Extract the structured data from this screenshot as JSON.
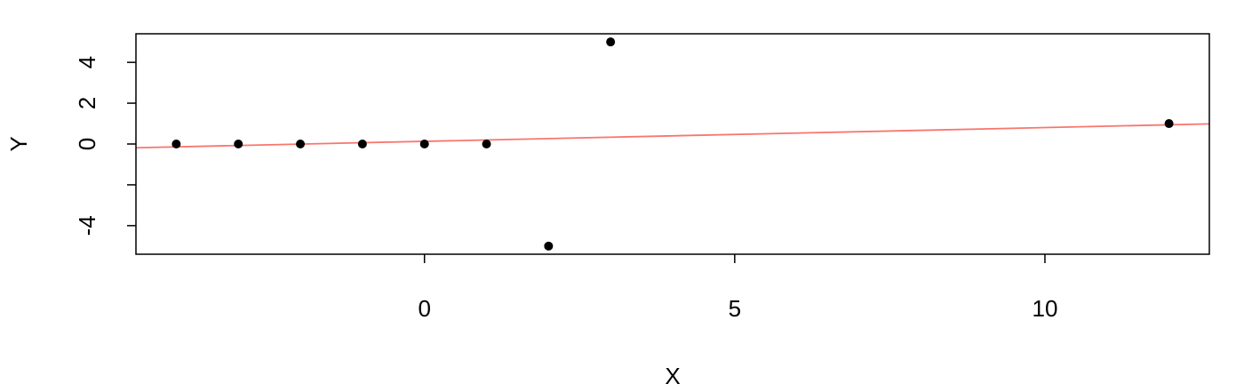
{
  "chart_data": {
    "type": "scatter",
    "title": "",
    "xlabel": "X",
    "ylabel": "Y",
    "xlim": [
      -4.65,
      12.65
    ],
    "ylim": [
      -5.4,
      5.4
    ],
    "x_ticks": [
      0,
      5,
      10
    ],
    "x_tick_labels": [
      "0",
      "5",
      "10"
    ],
    "y_ticks": [
      -4,
      -2,
      0,
      2,
      4
    ],
    "y_tick_labels": [
      "-4",
      "",
      "0",
      "2",
      "4"
    ],
    "grid": false,
    "legend": "none",
    "points": {
      "x": [
        -4,
        -3,
        -2,
        -1,
        0,
        1,
        2,
        3,
        12
      ],
      "y": [
        0,
        0,
        0,
        0,
        0,
        0,
        -5,
        5,
        1
      ],
      "color": "#000000"
    },
    "fit_line": {
      "slope": 0.0675,
      "intercept": 0.13,
      "color": "#F8766D"
    }
  }
}
